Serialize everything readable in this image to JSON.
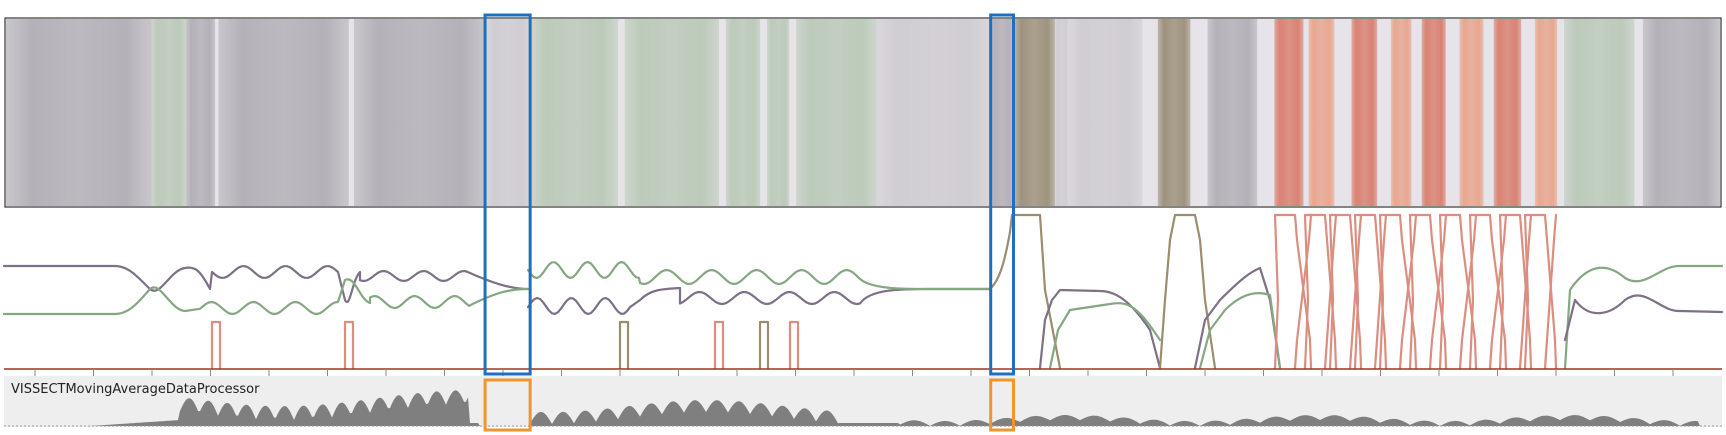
{
  "processor": {
    "name": "VISSECTMovingAverageDataProcessor"
  },
  "colors": {
    "gray": "#b1aeb5",
    "gray_light": "#cfccd1",
    "green": "#b9c9b7",
    "olive": "#9a8f78",
    "salmon": "#d97d6d",
    "salmon_light": "#e8a48c",
    "line_gray": "#7d7087",
    "line_green": "#85a882",
    "line_olive": "#9a8e6e",
    "line_salmon": "#db8e7f",
    "highlight_blue": "#1f6fbf",
    "highlight_orange": "#f0952a",
    "axis_red": "#a03020",
    "activity_fill": "#7f7f7f",
    "panel_bg": "#eeeeee"
  },
  "strip_segments": [
    {
      "start": 0.0,
      "end": 0.085,
      "color": "gray"
    },
    {
      "start": 0.085,
      "end": 0.105,
      "color": "green"
    },
    {
      "start": 0.105,
      "end": 0.122,
      "color": "gray"
    },
    {
      "start": 0.124,
      "end": 0.2,
      "color": "gray"
    },
    {
      "start": 0.203,
      "end": 0.28,
      "color": "gray"
    },
    {
      "start": 0.28,
      "end": 0.306,
      "color": "gray_light"
    },
    {
      "start": 0.306,
      "end": 0.357,
      "color": "green"
    },
    {
      "start": 0.361,
      "end": 0.416,
      "color": "green"
    },
    {
      "start": 0.42,
      "end": 0.44,
      "color": "green"
    },
    {
      "start": 0.444,
      "end": 0.457,
      "color": "green"
    },
    {
      "start": 0.461,
      "end": 0.508,
      "color": "green"
    },
    {
      "start": 0.508,
      "end": 0.574,
      "color": "gray_light"
    },
    {
      "start": 0.574,
      "end": 0.588,
      "color": "gray"
    },
    {
      "start": 0.588,
      "end": 0.612,
      "color": "olive"
    },
    {
      "start": 0.612,
      "end": 0.62,
      "color": "gray_light"
    },
    {
      "start": 0.62,
      "end": 0.663,
      "color": "gray_light"
    },
    {
      "start": 0.672,
      "end": 0.691,
      "color": "olive"
    },
    {
      "start": 0.701,
      "end": 0.73,
      "color": "gray"
    },
    {
      "start": 0.74,
      "end": 0.757,
      "color": "salmon"
    },
    {
      "start": 0.76,
      "end": 0.775,
      "color": "salmon_light"
    },
    {
      "start": 0.785,
      "end": 0.8,
      "color": "salmon"
    },
    {
      "start": 0.808,
      "end": 0.82,
      "color": "salmon_light"
    },
    {
      "start": 0.826,
      "end": 0.84,
      "color": "salmon"
    },
    {
      "start": 0.848,
      "end": 0.862,
      "color": "salmon_light"
    },
    {
      "start": 0.868,
      "end": 0.884,
      "color": "salmon"
    },
    {
      "start": 0.892,
      "end": 0.905,
      "color": "salmon_light"
    },
    {
      "start": 0.909,
      "end": 0.95,
      "color": "green"
    },
    {
      "start": 0.955,
      "end": 1.0,
      "color": "gray"
    }
  ],
  "highlights": [
    {
      "start": 0.2795,
      "end": 0.3058
    },
    {
      "start": 0.5745,
      "end": 0.5878
    }
  ]
}
